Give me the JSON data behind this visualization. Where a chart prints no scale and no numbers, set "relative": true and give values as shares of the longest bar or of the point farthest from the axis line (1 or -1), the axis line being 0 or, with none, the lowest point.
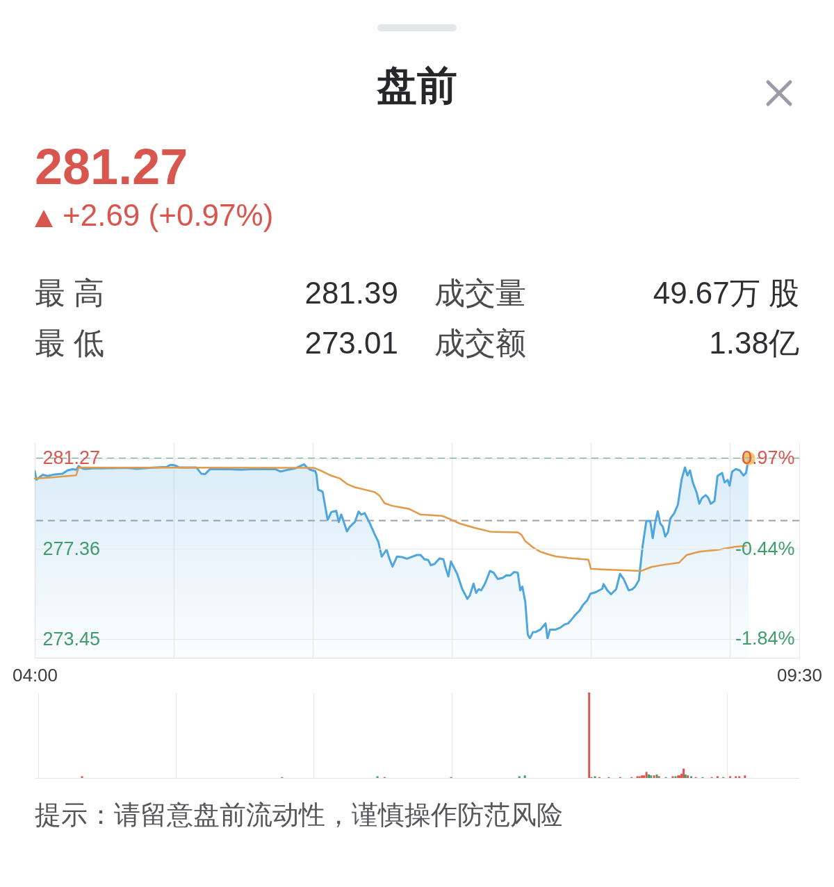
{
  "chart_data": [
    {
      "type": "other",
      "title": "盘前",
      "annotations": [
        "281.27",
        "+2.69 (+0.97%)",
        "最 高",
        "281.39",
        "成交量",
        "49.67万 股",
        "最 低",
        "273.01",
        "成交额",
        "1.38亿"
      ]
    },
    {
      "type": "line",
      "xlim": [
        4,
        9.5
      ],
      "xticks": [
        {
          "value": 4,
          "label": "04:00"
        },
        {
          "value": 5,
          "label": null
        },
        {
          "value": 6,
          "label": null
        },
        {
          "value": 7,
          "label": null
        },
        {
          "value": 8,
          "label": null
        },
        {
          "value": 9,
          "label": null
        },
        {
          "value": 9.5,
          "label": "09:30"
        }
      ],
      "ylim": [
        272.64,
        281.96
      ],
      "yticks": [
        281.27,
        277.36,
        273.45
      ],
      "y2lim": [
        -2.132,
        1.213
      ],
      "y2ticks": [
        {
          "value": 0.97,
          "label": "0.97%"
        },
        {
          "value": -0.44,
          "label": "-0.44%"
        },
        {
          "value": -1.84,
          "label": "-1.84%"
        }
      ],
      "grid": true,
      "ref_lines": [
        {
          "axis": "y",
          "value": 281.27,
          "color": "#5dae7b",
          "line_style": "dashed"
        },
        {
          "axis": "y2",
          "value": 0,
          "color": "#a0a0a8",
          "line_style": "dashed"
        }
      ],
      "series": [
        {
          "type": "area",
          "color": "#4ea6df",
          "x": [
            4.0,
            4.012,
            4.057,
            4.093,
            4.146,
            4.2,
            4.235,
            4.271,
            4.298,
            4.316,
            4.333,
            4.36,
            4.414,
            4.485,
            4.663,
            4.734,
            4.841,
            4.948,
            4.975,
            5.011,
            5.037,
            5.162,
            5.198,
            5.225,
            5.26,
            5.376,
            5.483,
            5.554,
            5.733,
            5.768,
            5.822,
            5.875,
            5.911,
            5.938,
            5.955,
            5.982,
            6.018,
            6.027,
            6.039,
            6.071,
            6.107,
            6.134,
            6.169,
            6.187,
            6.205,
            6.217,
            6.246,
            6.267,
            6.303,
            6.33,
            6.348,
            6.374,
            6.41,
            6.446,
            6.472,
            6.496,
            6.531,
            6.553,
            6.574,
            6.606,
            6.642,
            6.677,
            6.749,
            6.776,
            6.804,
            6.831,
            6.849,
            6.876,
            6.912,
            6.94,
            6.958,
            6.976,
            6.994,
            7.039,
            7.076,
            7.112,
            7.13,
            7.157,
            7.175,
            7.194,
            7.212,
            7.239,
            7.275,
            7.302,
            7.33,
            7.366,
            7.393,
            7.42,
            7.448,
            7.475,
            7.493,
            7.508,
            7.529,
            7.547,
            7.562,
            7.584,
            7.602,
            7.638,
            7.675,
            7.689,
            7.707,
            7.747,
            7.783,
            7.811,
            7.838,
            7.865,
            7.892,
            7.919,
            7.947,
            7.974,
            7.997,
            8.037,
            8.083,
            8.092,
            8.119,
            8.146,
            8.183,
            8.21,
            8.237,
            8.273,
            8.3,
            8.319,
            8.346,
            8.373,
            8.4,
            8.428,
            8.446,
            8.464,
            8.482,
            8.5,
            8.518,
            8.536,
            8.555,
            8.573,
            8.6,
            8.627,
            8.654,
            8.678,
            8.696,
            8.714,
            8.736,
            8.763,
            8.781,
            8.8,
            8.827,
            8.845,
            8.863,
            8.89,
            8.912,
            8.945,
            8.963,
            8.985,
            8.999,
            9.017,
            9.044,
            9.072,
            9.099,
            9.117,
            9.135
          ],
          "values": [
            280.72,
            280.35,
            280.56,
            280.51,
            280.58,
            280.61,
            280.75,
            280.8,
            280.78,
            280.94,
            280.86,
            280.81,
            280.84,
            280.84,
            280.86,
            280.82,
            280.87,
            280.9,
            280.99,
            280.97,
            280.88,
            280.88,
            280.61,
            280.59,
            280.8,
            280.81,
            280.78,
            280.8,
            280.8,
            280.7,
            280.78,
            280.84,
            280.94,
            281.01,
            280.9,
            280.78,
            280.72,
            280.56,
            279.92,
            279.83,
            278.61,
            278.95,
            279.0,
            278.52,
            278.84,
            278.63,
            278.11,
            278.31,
            278.52,
            278.97,
            278.84,
            278.9,
            278.47,
            277.98,
            277.66,
            277.02,
            277.32,
            276.91,
            276.59,
            277.02,
            277.0,
            276.93,
            277.09,
            277.09,
            276.9,
            276.87,
            276.65,
            276.7,
            276.94,
            276.9,
            276.49,
            276.16,
            276.81,
            276.27,
            275.61,
            275.19,
            275.34,
            275.85,
            275.45,
            275.61,
            275.56,
            275.85,
            276.4,
            276.32,
            276.05,
            276.1,
            276.21,
            276.2,
            276.35,
            276.32,
            275.56,
            275.72,
            275.06,
            273.64,
            273.48,
            273.75,
            273.75,
            273.86,
            274.13,
            273.48,
            273.86,
            273.86,
            273.95,
            274.08,
            274.13,
            274.32,
            274.52,
            274.68,
            274.95,
            275.12,
            275.41,
            275.48,
            275.63,
            275.83,
            275.56,
            275.39,
            275.61,
            276.27,
            276.05,
            275.56,
            275.61,
            275.72,
            275.99,
            277.47,
            278.56,
            278.56,
            277.82,
            278.51,
            278.98,
            278.45,
            278.32,
            277.89,
            278.07,
            278.67,
            278.89,
            279.27,
            280.37,
            280.88,
            280.53,
            280.75,
            280.2,
            279.77,
            279.31,
            279.55,
            279.68,
            279.57,
            279.31,
            279.42,
            280.51,
            280.64,
            280.23,
            280.34,
            280.09,
            280.7,
            280.81,
            280.75,
            280.53,
            280.64,
            281.27
          ]
        },
        {
          "type": "line",
          "color": "#e39a48",
          "x": [
            4.0,
            4.128,
            4.298,
            4.316,
            4.485,
            5.02,
            5.733,
            6.009,
            6.053,
            6.125,
            6.196,
            6.25,
            6.303,
            6.374,
            6.446,
            6.481,
            6.517,
            6.57,
            6.642,
            6.695,
            6.776,
            6.931,
            6.985,
            7.058,
            7.166,
            7.275,
            7.475,
            7.502,
            7.529,
            7.584,
            7.638,
            7.693,
            7.747,
            7.838,
            7.983,
            8.001,
            8.11,
            8.237,
            8.364,
            8.437,
            8.509,
            8.636,
            8.691,
            8.781,
            8.908,
            9.035,
            9.117
          ],
          "values": [
            280.4,
            280.45,
            280.54,
            280.88,
            280.87,
            280.87,
            280.86,
            280.86,
            280.75,
            280.54,
            280.4,
            280.15,
            280.02,
            279.92,
            279.81,
            279.65,
            279.33,
            279.22,
            279.14,
            279.08,
            278.84,
            278.78,
            278.65,
            278.45,
            278.26,
            278.1,
            278.07,
            277.96,
            277.69,
            277.42,
            277.23,
            277.12,
            277.03,
            276.96,
            276.89,
            276.49,
            276.46,
            276.43,
            276.4,
            276.57,
            276.65,
            276.76,
            277.09,
            277.23,
            277.31,
            277.44,
            277.49
          ]
        },
        {
          "type": "scatter",
          "color": "#f4bb4a",
          "marker": "circle",
          "x": [
            9.135
          ],
          "values": [
            281.27
          ]
        }
      ]
    },
    {
      "type": "bar",
      "relative": true,
      "tick_labels": false,
      "grid": "x",
      "xlim": [
        4,
        9.5
      ],
      "xticks": [
        4,
        5,
        6,
        7,
        9
      ],
      "x": [
        4.318,
        5.77,
        6.463,
        6.515,
        6.998,
        7.493,
        7.533,
        8.0,
        8.017,
        8.042,
        8.075,
        8.142,
        8.225,
        8.308,
        8.35,
        8.366,
        8.383,
        8.398,
        8.416,
        8.433,
        8.449,
        8.471,
        8.491,
        8.507,
        8.557,
        8.607,
        8.627,
        8.646,
        8.657,
        8.671,
        8.686,
        8.699,
        8.716,
        8.741,
        8.774,
        8.824,
        8.89,
        8.932,
        8.974,
        9.024,
        9.065,
        9.09,
        9.131
      ],
      "values": [
        0.02,
        0.01,
        0.02,
        0.01,
        0.01,
        0.02,
        0.03,
        1,
        0.01,
        0.02,
        0.01,
        0.01,
        0.01,
        0.01,
        0.02,
        0.02,
        0.03,
        0.03,
        0.07,
        0.04,
        0.03,
        0.03,
        0.04,
        0.02,
        0.01,
        0.02,
        0.02,
        0.03,
        0.03,
        0.05,
        0.11,
        0.04,
        0.03,
        0.02,
        0.01,
        0.01,
        0.01,
        0.02,
        0.01,
        0.02,
        0.02,
        0.02,
        0.03
      ],
      "colors": [
        "#d9564e",
        "#3e9d6a",
        "#3e9d6a",
        "#d9564e",
        "#3e9d6a",
        "#3e9d6a",
        "#3e9d6a",
        "#d9564e",
        "#d9564e",
        "#3e9d6a",
        "#d9564e",
        "#3e9d6a",
        "#d9564e",
        "#d9564e",
        "#d9564e",
        "#d9564e",
        "#d9564e",
        "#d9564e",
        "#d9564e",
        "#3e9d6a",
        "#3e9d6a",
        "#d9564e",
        "#3e9d6a",
        "#d9564e",
        "#3e9d6a",
        "#d9564e",
        "#3e9d6a",
        "#d9564e",
        "#d9564e",
        "#d9564e",
        "#d9564e",
        "#3e9d6a",
        "#d9564e",
        "#3e9d6a",
        "#d9564e",
        "#3e9d6a",
        "#d9564e",
        "#d9564e",
        "#3e9d6a",
        "#d9564e",
        "#d9564e",
        "#d9564e",
        "#d9564e"
      ],
      "annotations": [
        "提示：请留意盘前流动性，谨慎操作防范风险"
      ]
    }
  ]
}
